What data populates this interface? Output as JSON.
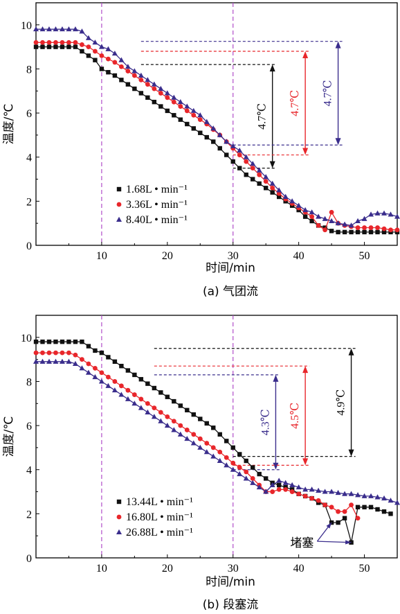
{
  "colors": {
    "black": "#111111",
    "red": "#e8262b",
    "blue": "#3a2d8c",
    "guide": "#b04bc8"
  },
  "chart_data": [
    {
      "type": "line",
      "caption": "(a) 气团流",
      "xlabel": "时间/min",
      "ylabel": "温度/℃",
      "xlim": [
        0,
        55
      ],
      "ylim": [
        0,
        11
      ],
      "xticks": [
        10,
        20,
        30,
        40,
        50
      ],
      "yticks": [
        0,
        2,
        4,
        6,
        8,
        10
      ],
      "vlines": [
        10,
        30
      ],
      "legend_position": "bottom-left",
      "series": [
        {
          "name": "1.68L • min⁻¹",
          "marker": "square",
          "color": "#111111",
          "x": [
            0,
            1,
            2,
            3,
            4,
            5,
            6,
            7,
            8,
            9,
            10,
            11,
            12,
            13,
            14,
            15,
            16,
            17,
            18,
            19,
            20,
            21,
            22,
            23,
            24,
            25,
            26,
            27,
            28,
            29,
            30,
            31,
            32,
            33,
            34,
            35,
            36,
            37,
            38,
            39,
            40,
            41,
            42,
            43,
            44,
            45,
            46,
            47,
            48,
            49,
            50,
            51,
            52,
            53,
            54,
            55
          ],
          "y": [
            9.0,
            9.0,
            9.0,
            9.0,
            9.0,
            9.0,
            9.0,
            8.8,
            8.6,
            8.4,
            8.0,
            7.85,
            7.7,
            7.5,
            7.3,
            7.1,
            6.9,
            6.7,
            6.5,
            6.3,
            6.1,
            5.9,
            5.7,
            5.5,
            5.3,
            5.1,
            4.9,
            4.7,
            4.4,
            4.1,
            3.8,
            3.5,
            3.2,
            3.0,
            2.8,
            2.6,
            2.4,
            2.2,
            2.0,
            1.8,
            1.6,
            1.3,
            1.1,
            0.9,
            0.8,
            0.65,
            0.6,
            0.6,
            0.6,
            0.6,
            0.6,
            0.6,
            0.6,
            0.6,
            0.6,
            0.6
          ]
        },
        {
          "name": "3.36L • min⁻¹",
          "marker": "circle",
          "color": "#e8262b",
          "x": [
            0,
            1,
            2,
            3,
            4,
            5,
            6,
            7,
            8,
            9,
            10,
            11,
            12,
            13,
            14,
            15,
            16,
            17,
            18,
            19,
            20,
            21,
            22,
            23,
            24,
            25,
            26,
            27,
            28,
            29,
            30,
            31,
            32,
            33,
            34,
            35,
            36,
            37,
            38,
            39,
            40,
            41,
            42,
            43,
            44,
            45,
            46,
            47,
            48,
            49,
            50,
            51,
            52,
            53,
            54,
            55
          ],
          "y": [
            9.2,
            9.2,
            9.2,
            9.2,
            9.2,
            9.2,
            9.2,
            9.1,
            9.0,
            8.8,
            8.6,
            8.45,
            8.3,
            8.1,
            7.9,
            7.7,
            7.5,
            7.3,
            7.1,
            6.9,
            6.7,
            6.5,
            6.3,
            6.1,
            5.9,
            5.7,
            5.5,
            5.25,
            5.0,
            4.7,
            4.4,
            4.1,
            3.8,
            3.5,
            3.2,
            2.9,
            2.6,
            2.35,
            2.1,
            1.9,
            1.7,
            1.5,
            1.3,
            0.9,
            0.7,
            1.5,
            1.0,
            0.9,
            0.85,
            0.8,
            0.8,
            0.8,
            0.8,
            0.75,
            0.7,
            0.7
          ]
        },
        {
          "name": "8.40L • min⁻¹",
          "marker": "triangle",
          "color": "#3a2d8c",
          "x": [
            0,
            1,
            2,
            3,
            4,
            5,
            6,
            7,
            8,
            9,
            10,
            11,
            12,
            13,
            14,
            15,
            16,
            17,
            18,
            19,
            20,
            21,
            22,
            23,
            24,
            25,
            26,
            27,
            28,
            29,
            30,
            31,
            32,
            33,
            34,
            35,
            36,
            37,
            38,
            39,
            40,
            41,
            42,
            43,
            44,
            45,
            46,
            47,
            48,
            49,
            50,
            51,
            52,
            53,
            54,
            55
          ],
          "y": [
            9.8,
            9.8,
            9.8,
            9.8,
            9.8,
            9.8,
            9.8,
            9.7,
            9.4,
            9.2,
            9.0,
            8.9,
            8.7,
            8.4,
            8.1,
            7.9,
            7.7,
            7.5,
            7.3,
            7.1,
            6.9,
            6.7,
            6.5,
            6.3,
            6.1,
            5.9,
            5.6,
            5.3,
            5.0,
            4.7,
            4.5,
            4.3,
            4.0,
            3.7,
            3.4,
            3.1,
            2.8,
            2.5,
            2.2,
            2.0,
            1.8,
            1.6,
            1.5,
            1.3,
            1.2,
            1.1,
            1.0,
            0.95,
            0.9,
            1.1,
            1.2,
            1.4,
            1.45,
            1.45,
            1.4,
            1.3
          ]
        }
      ],
      "annotations": [
        {
          "text": "4.7℃",
          "color": "#111111",
          "x": 36,
          "y_top": 8.2,
          "y_bottom": 3.5
        },
        {
          "text": "4.7℃",
          "color": "#e8262b",
          "x": 41,
          "y_top": 8.8,
          "y_bottom": 4.1
        },
        {
          "text": "4.7℃",
          "color": "#3a2d8c",
          "x": 46,
          "y_top": 9.25,
          "y_bottom": 4.55
        }
      ]
    },
    {
      "type": "line",
      "caption": "(b) 段塞流",
      "xlabel": "时间/min",
      "ylabel": "温度/℃",
      "xlim": [
        0,
        55
      ],
      "ylim": [
        0,
        11
      ],
      "xticks": [
        10,
        20,
        30,
        40,
        50
      ],
      "yticks": [
        0,
        2,
        4,
        6,
        8,
        10
      ],
      "vlines": [
        10,
        30
      ],
      "legend_position": "bottom-left",
      "series": [
        {
          "name": "13.44L • min⁻¹",
          "marker": "square",
          "color": "#111111",
          "x": [
            0,
            1,
            2,
            3,
            4,
            5,
            6,
            7,
            8,
            9,
            10,
            11,
            12,
            13,
            14,
            15,
            16,
            17,
            18,
            19,
            20,
            21,
            22,
            23,
            24,
            25,
            26,
            27,
            28,
            29,
            30,
            31,
            32,
            33,
            34,
            35,
            36,
            37,
            38,
            39,
            40,
            41,
            42,
            43,
            44,
            45,
            46,
            47,
            48,
            49,
            50,
            51,
            52,
            53,
            54
          ],
          "y": [
            9.8,
            9.8,
            9.8,
            9.8,
            9.8,
            9.8,
            9.8,
            9.8,
            9.6,
            9.4,
            9.3,
            9.1,
            8.9,
            8.7,
            8.5,
            8.3,
            8.1,
            7.9,
            7.7,
            7.5,
            7.3,
            7.1,
            6.9,
            6.7,
            6.5,
            6.3,
            6.1,
            5.9,
            5.6,
            5.3,
            5.0,
            4.7,
            4.4,
            4.1,
            3.8,
            3.6,
            3.4,
            3.3,
            3.2,
            3.1,
            2.9,
            2.8,
            2.7,
            2.5,
            2.4,
            1.6,
            1.6,
            1.8,
            0.7,
            2.3,
            2.3,
            2.3,
            2.2,
            2.1,
            2.0
          ]
        },
        {
          "name": "16.80L • min⁻¹",
          "marker": "circle",
          "color": "#e8262b",
          "x": [
            0,
            1,
            2,
            3,
            4,
            5,
            6,
            7,
            8,
            9,
            10,
            11,
            12,
            13,
            14,
            15,
            16,
            17,
            18,
            19,
            20,
            21,
            22,
            23,
            24,
            25,
            26,
            27,
            28,
            29,
            30,
            31,
            32,
            33,
            34,
            35,
            36,
            37,
            38,
            39,
            40,
            41,
            42,
            43,
            44,
            45,
            46,
            47,
            48,
            49
          ],
          "y": [
            9.3,
            9.3,
            9.3,
            9.3,
            9.3,
            9.3,
            9.2,
            9.0,
            8.8,
            8.6,
            8.4,
            8.2,
            8.0,
            7.8,
            7.6,
            7.4,
            7.2,
            7.0,
            6.8,
            6.6,
            6.4,
            6.2,
            6.0,
            5.8,
            5.6,
            5.4,
            5.2,
            5.0,
            4.8,
            4.55,
            4.3,
            4.1,
            3.9,
            3.6,
            3.3,
            3.0,
            3.0,
            3.1,
            3.1,
            3.0,
            2.9,
            2.8,
            2.7,
            2.6,
            2.4,
            2.3,
            2.1,
            2.1,
            2.4,
            1.8
          ]
        },
        {
          "name": "26.88L • min⁻¹",
          "marker": "triangle",
          "color": "#3a2d8c",
          "x": [
            0,
            1,
            2,
            3,
            4,
            5,
            6,
            7,
            8,
            9,
            10,
            11,
            12,
            13,
            14,
            15,
            16,
            17,
            18,
            19,
            20,
            21,
            22,
            23,
            24,
            25,
            26,
            27,
            28,
            29,
            30,
            31,
            32,
            33,
            34,
            35,
            36,
            37,
            38,
            39,
            40,
            41,
            42,
            43,
            44,
            45,
            46,
            47,
            48,
            49,
            50,
            51,
            52,
            53,
            54,
            55
          ],
          "y": [
            8.9,
            8.9,
            8.9,
            8.9,
            8.9,
            8.9,
            8.8,
            8.6,
            8.4,
            8.2,
            8.0,
            7.8,
            7.6,
            7.4,
            7.2,
            7.0,
            6.8,
            6.6,
            6.4,
            6.2,
            6.0,
            5.8,
            5.6,
            5.4,
            5.2,
            5.0,
            4.8,
            4.6,
            4.4,
            4.2,
            4.0,
            3.8,
            3.6,
            3.4,
            3.2,
            3.0,
            3.3,
            3.5,
            3.4,
            3.3,
            3.2,
            3.1,
            3.1,
            3.05,
            3.0,
            3.0,
            2.95,
            2.9,
            2.9,
            2.85,
            2.8,
            2.8,
            2.75,
            2.7,
            2.6,
            2.5
          ]
        }
      ],
      "annotations": [
        {
          "text": "4.3℃",
          "color": "#3a2d8c",
          "x": 36.5,
          "y_top": 8.3,
          "y_bottom": 4.0
        },
        {
          "text": "4.5℃",
          "color": "#e8262b",
          "x": 41,
          "y_top": 8.7,
          "y_bottom": 4.2
        },
        {
          "text": "4.9℃",
          "color": "#111111",
          "x": 48,
          "y_top": 9.5,
          "y_bottom": 4.6
        }
      ],
      "callout": {
        "text": "堵塞",
        "color": "#3a2d8c",
        "targets": [
          [
            45,
            1.6
          ],
          [
            48,
            0.7
          ]
        ]
      }
    }
  ]
}
